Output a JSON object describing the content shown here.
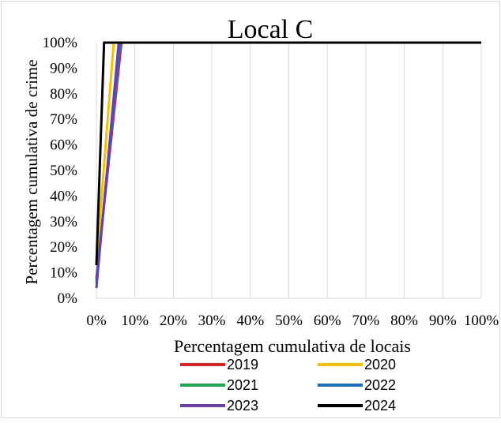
{
  "chart_data": {
    "type": "line",
    "title": "Local C",
    "xlabel": "Percentagem cumulativa de locais",
    "ylabel": "Percentagem cumulativa de crime",
    "xlim": [
      0,
      100
    ],
    "ylim": [
      0,
      100
    ],
    "x_ticks": [
      "0%",
      "10%",
      "20%",
      "30%",
      "40%",
      "50%",
      "60%",
      "70%",
      "80%",
      "90%",
      "100%"
    ],
    "y_ticks": [
      "0%",
      "10%",
      "20%",
      "30%",
      "40%",
      "50%",
      "60%",
      "70%",
      "80%",
      "90%",
      "100%"
    ],
    "grid": "vertical",
    "legend_position": "bottom",
    "series": [
      {
        "name": "2019",
        "color": "#e41e26",
        "x": [
          0,
          6.5,
          100
        ],
        "y": [
          8,
          100,
          100
        ]
      },
      {
        "name": "2020",
        "color": "#f5c000",
        "x": [
          0,
          4.5,
          100
        ],
        "y": [
          14,
          100,
          100
        ]
      },
      {
        "name": "2021",
        "color": "#1fa84f",
        "x": [
          0,
          6.0,
          100
        ],
        "y": [
          6,
          100,
          100
        ]
      },
      {
        "name": "2022",
        "color": "#1f6fc0",
        "x": [
          0,
          6.2,
          100
        ],
        "y": [
          7,
          100,
          100
        ]
      },
      {
        "name": "2023",
        "color": "#6b3fa8",
        "x": [
          0,
          5.8,
          100
        ],
        "y": [
          4,
          100,
          100
        ]
      },
      {
        "name": "2024",
        "color": "#000000",
        "x": [
          0,
          2.0,
          100
        ],
        "y": [
          13,
          100,
          100
        ]
      }
    ]
  }
}
